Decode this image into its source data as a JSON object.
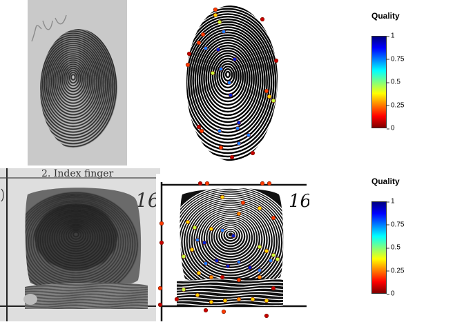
{
  "colorbars": [
    {
      "title": "Quality",
      "ticks": [
        "1",
        "0.75",
        "0.5",
        "0.25",
        "0"
      ],
      "tick_values": [
        1,
        0.75,
        0.5,
        0.25,
        0
      ],
      "colors": [
        "#00007f",
        "#0000ff",
        "#007fff",
        "#00ffff",
        "#7fff7f",
        "#ffff00",
        "#ff7f00",
        "#ff0000",
        "#7f0000"
      ]
    },
    {
      "title": "Quality",
      "ticks": [
        "1",
        "0.75",
        "0.5",
        "0.25",
        "0"
      ],
      "tick_values": [
        1,
        0.75,
        0.5,
        0.25,
        0
      ],
      "colors": [
        "#00007f",
        "#0000ff",
        "#007fff",
        "#00ffff",
        "#7fff7f",
        "#ffff00",
        "#ff7f00",
        "#ff0000",
        "#7f0000"
      ]
    }
  ],
  "card_labels": {
    "finger_name": "2. Index finger",
    "finger_number": "16",
    "finger_number_enhanced": "16"
  }
}
